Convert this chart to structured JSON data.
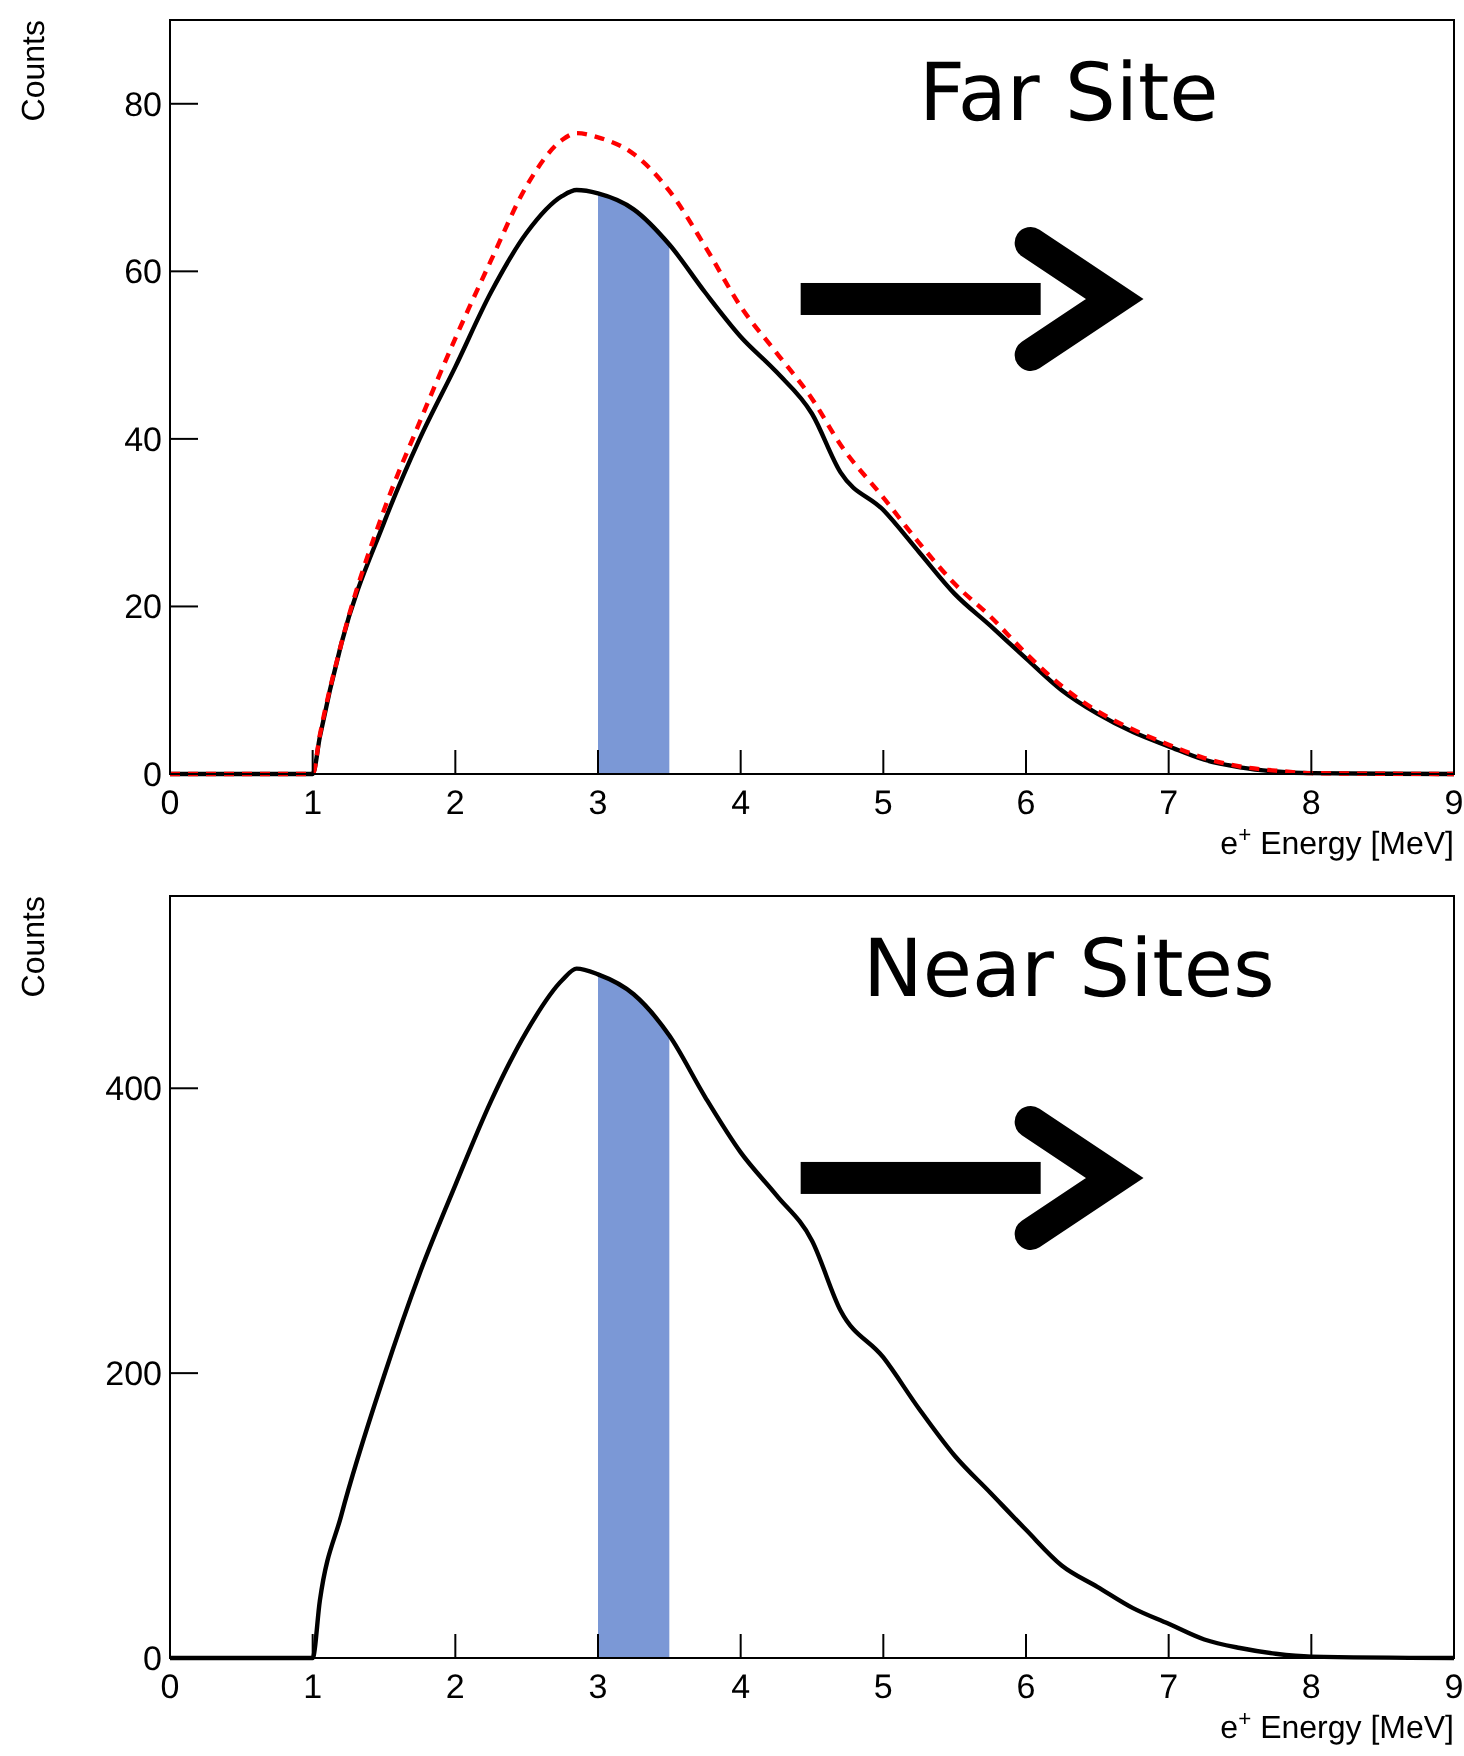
{
  "chart_data": [
    {
      "type": "line",
      "title": "Far Site",
      "xlabel": "e$^{+}$ Energy [MeV]",
      "ylabel": "Counts",
      "xlim": [
        0,
        9
      ],
      "xticks": [
        0,
        1,
        2,
        3,
        4,
        5,
        6,
        7,
        8,
        9
      ],
      "ylim": [
        0,
        90
      ],
      "yticks": [
        0,
        20,
        40,
        60,
        80
      ],
      "grid": false,
      "x": [
        0,
        1,
        1.05,
        1.2,
        1.5,
        1.75,
        2,
        2.25,
        2.5,
        2.75,
        2.85,
        3,
        3.25,
        3.5,
        3.75,
        4,
        4.25,
        4.5,
        4.7,
        5,
        5.25,
        5.5,
        5.75,
        6,
        6.25,
        6.5,
        6.75,
        7,
        7.25,
        7.5,
        7.75,
        8,
        9
      ],
      "series": [
        {
          "color": "#000000",
          "line_style": "solid",
          "values": [
            0,
            0,
            4.4,
            15.5,
            30,
            40,
            48.6,
            57.5,
            64.6,
            69,
            69.7,
            69.3,
            67.4,
            63.2,
            57.5,
            52.2,
            48,
            43,
            36,
            31.5,
            26.5,
            21.5,
            17.7,
            13.8,
            10,
            7.2,
            5,
            3.3,
            1.7,
            0.8,
            0.3,
            0.1,
            0
          ]
        },
        {
          "color": "#ff0000",
          "line_style": "dashed",
          "values": [
            0,
            0,
            4.6,
            15.5,
            31.5,
            42,
            52,
            61.3,
            70.2,
            75.7,
            76.5,
            76,
            74,
            69.6,
            63,
            55.8,
            50.3,
            44.8,
            39.3,
            33,
            27.6,
            22.7,
            18.8,
            14.4,
            10.5,
            7.5,
            5.3,
            3.5,
            1.9,
            0.9,
            0.4,
            0.1,
            0
          ]
        }
      ],
      "bands": [
        {
          "axis": "x",
          "from": 3,
          "to": 3.5,
          "color": "#7b98d6"
        }
      ]
    },
    {
      "type": "line",
      "title": "Near Sites",
      "xlabel": "e$^{+}$ Energy [MeV]",
      "ylabel": "Counts",
      "xlim": [
        0,
        9
      ],
      "xticks": [
        0,
        1,
        2,
        3,
        4,
        5,
        6,
        7,
        8,
        9
      ],
      "ylim": [
        0,
        535
      ],
      "yticks": [
        0,
        200,
        400
      ],
      "grid": false,
      "x": [
        0,
        1,
        1.05,
        1.2,
        1.5,
        1.75,
        2,
        2.25,
        2.5,
        2.75,
        2.85,
        3,
        3.25,
        3.5,
        3.75,
        4,
        4.25,
        4.5,
        4.7,
        5,
        5.25,
        5.5,
        5.75,
        6,
        6.25,
        6.5,
        6.75,
        7,
        7.25,
        7.5,
        7.75,
        8,
        9
      ],
      "series": [
        {
          "color": "#000000",
          "line_style": "solid",
          "values": [
            0,
            0,
            40,
            100,
            198,
            270,
            332,
            391,
            440,
            476,
            484,
            480,
            466,
            437,
            394,
            355,
            325,
            293,
            244,
            211,
            175,
            142,
            116,
            90,
            65,
            50,
            35,
            24,
            13,
            7,
            3,
            1,
            0
          ]
        }
      ],
      "bands": [
        {
          "axis": "x",
          "from": 3,
          "to": 3.5,
          "color": "#7b98d6"
        }
      ]
    }
  ]
}
